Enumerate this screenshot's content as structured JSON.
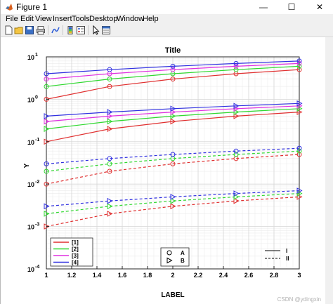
{
  "window": {
    "title": "Figure 1",
    "controls": {
      "minimize": "—",
      "maximize": "☐",
      "close": "✕"
    }
  },
  "menubar": [
    "File",
    "Edit",
    "View",
    "Insert",
    "Tools",
    "Desktop",
    "Window",
    "Help"
  ],
  "toolbar": [
    "new-figure-icon",
    "open-file-icon",
    "save-icon",
    "print-icon",
    "link-plot-icon",
    "insert-colorbar-icon",
    "insert-legend-icon",
    "pointer-icon",
    "property-editor-icon"
  ],
  "watermark": "CSDN @ydingxin",
  "chart_data": {
    "type": "line",
    "title": "Title",
    "xlabel": "LABEL",
    "ylabel": "Y",
    "xlim": [
      1,
      3
    ],
    "ylim": [
      0.0001,
      10
    ],
    "yscale": "log",
    "grid": true,
    "minor_grid": true,
    "x_ticks": [
      "1",
      "1.2",
      "1.4",
      "1.6",
      "1.8",
      "2",
      "2.2",
      "2.4",
      "2.6",
      "2.8",
      "3"
    ],
    "y_ticks": [
      {
        "base": "10",
        "exp": "1"
      },
      {
        "base": "10",
        "exp": "0"
      },
      {
        "base": "10",
        "exp": "-1"
      },
      {
        "base": "10",
        "exp": "-2"
      },
      {
        "base": "10",
        "exp": "-3"
      },
      {
        "base": "10",
        "exp": "-4"
      }
    ],
    "x": [
      1,
      1.5,
      2,
      2.5,
      3
    ],
    "colors": {
      "[1]": "#e03030",
      "[2]": "#30d830",
      "[3]": "#e030e0",
      "[4]": "#3030e0"
    },
    "series": [
      {
        "group": "[1]",
        "marker": "circle",
        "line": "solid",
        "values": [
          1.0,
          2.0,
          3.0,
          4.0,
          5.0
        ]
      },
      {
        "group": "[2]",
        "marker": "circle",
        "line": "solid",
        "values": [
          2.0,
          3.0,
          4.0,
          5.0,
          6.0
        ]
      },
      {
        "group": "[3]",
        "marker": "circle",
        "line": "solid",
        "values": [
          3.0,
          4.0,
          5.0,
          6.0,
          7.0
        ]
      },
      {
        "group": "[4]",
        "marker": "circle",
        "line": "solid",
        "values": [
          4.0,
          5.0,
          6.0,
          7.0,
          8.0
        ]
      },
      {
        "group": "[1]",
        "marker": "triangle",
        "line": "solid",
        "values": [
          0.1,
          0.2,
          0.3,
          0.4,
          0.5
        ]
      },
      {
        "group": "[2]",
        "marker": "triangle",
        "line": "solid",
        "values": [
          0.2,
          0.3,
          0.4,
          0.5,
          0.6
        ]
      },
      {
        "group": "[3]",
        "marker": "triangle",
        "line": "solid",
        "values": [
          0.3,
          0.4,
          0.5,
          0.6,
          0.7
        ]
      },
      {
        "group": "[4]",
        "marker": "triangle",
        "line": "solid",
        "values": [
          0.4,
          0.5,
          0.6,
          0.7,
          0.8
        ]
      },
      {
        "group": "[1]",
        "marker": "circle",
        "line": "dashed",
        "values": [
          0.01,
          0.02,
          0.03,
          0.04,
          0.05
        ]
      },
      {
        "group": "[2]",
        "marker": "circle",
        "line": "dashed",
        "values": [
          0.02,
          0.03,
          0.04,
          0.05,
          0.06
        ]
      },
      {
        "group": "[4]",
        "marker": "circle",
        "line": "dashed",
        "values": [
          0.03,
          0.04,
          0.05,
          0.06,
          0.07
        ]
      },
      {
        "group": "[1]",
        "marker": "triangle",
        "line": "dashed",
        "values": [
          0.001,
          0.002,
          0.003,
          0.004,
          0.005
        ]
      },
      {
        "group": "[2]",
        "marker": "triangle",
        "line": "dashed",
        "values": [
          0.002,
          0.003,
          0.004,
          0.005,
          0.006
        ]
      },
      {
        "group": "[4]",
        "marker": "triangle",
        "line": "dashed",
        "values": [
          0.003,
          0.004,
          0.005,
          0.006,
          0.007
        ]
      }
    ],
    "legend_colors": {
      "placement": "bottom-left",
      "items": [
        "[1]",
        "[2]",
        "[3]",
        "[4]"
      ]
    },
    "legend_markers": {
      "placement": "bottom-center",
      "items": [
        {
          "marker": "circle",
          "label": "A"
        },
        {
          "marker": "triangle",
          "label": "B"
        }
      ]
    },
    "legend_lines": {
      "placement": "bottom-right",
      "items": [
        {
          "line": "solid",
          "label": "I"
        },
        {
          "line": "dashed",
          "label": "II"
        }
      ]
    }
  }
}
